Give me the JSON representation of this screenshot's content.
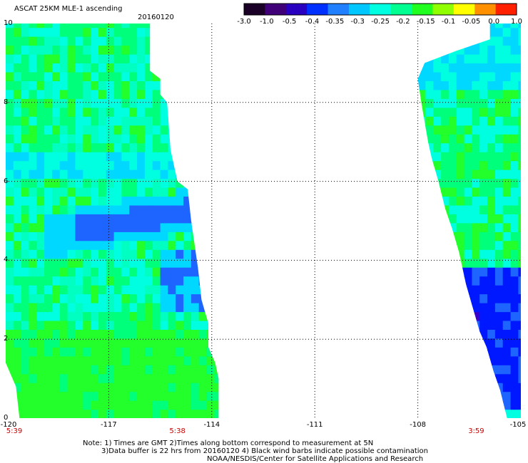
{
  "header": {
    "title": "ASCAT 25KM MLE-1 ascending",
    "date": "20160120"
  },
  "colorbar": {
    "tick_labels": [
      "-3.0",
      "-1.0",
      "-0.5",
      "-0.4",
      "-0.35",
      "-0.3",
      "-0.25",
      "-0.2",
      "-0.15",
      "-0.1",
      "-0.05",
      "0.0",
      "1.0"
    ],
    "colors": [
      "#1a0026",
      "#400078",
      "#2a00c0",
      "#0030ff",
      "#2080ff",
      "#00c8ff",
      "#00ffe0",
      "#00ff90",
      "#20ff20",
      "#90ff00",
      "#ffff00",
      "#ff9000",
      "#ff2000"
    ]
  },
  "map": {
    "lon_range": [
      -120,
      -105
    ],
    "lat_range": [
      0,
      10
    ],
    "lon_labels": [
      "-120",
      "-117",
      "-114",
      "-111",
      "-108",
      "-105"
    ],
    "lat_labels": [
      "0",
      "2",
      "4",
      "6",
      "8",
      "10"
    ],
    "time_labels": [
      {
        "text": "5:39",
        "lon": -120
      },
      {
        "text": "5:38",
        "lon": -115
      },
      {
        "text": "3:59",
        "lon": -106.3
      }
    ],
    "grid": "dotted",
    "swaths": [
      {
        "name": "west",
        "edge": [
          [
            -120,
            10
          ],
          [
            -115.8,
            10
          ],
          [
            -115.8,
            8.8
          ],
          [
            -115.5,
            8.6
          ],
          [
            -115.5,
            8.2
          ],
          [
            -115.3,
            8
          ],
          [
            -115.2,
            6.8
          ],
          [
            -115,
            6
          ],
          [
            -114.7,
            5.8
          ],
          [
            -114.6,
            5
          ],
          [
            -114.5,
            4.4
          ],
          [
            -114.4,
            3.8
          ],
          [
            -114.3,
            3
          ],
          [
            -114.1,
            2.4
          ],
          [
            -114.1,
            1.8
          ],
          [
            -113.9,
            1.4
          ],
          [
            -113.8,
            1
          ],
          [
            -113.8,
            0.5
          ],
          [
            -113.8,
            0
          ],
          [
            -119.6,
            0
          ],
          [
            -119.7,
            0.8
          ],
          [
            -120,
            1.4
          ]
        ]
      },
      {
        "name": "east",
        "edge": [
          [
            -105.9,
            10
          ],
          [
            -105,
            10
          ],
          [
            -105,
            0
          ],
          [
            -105.4,
            0
          ],
          [
            -105.6,
            0.7
          ],
          [
            -105.8,
            1.2
          ],
          [
            -106,
            1.8
          ],
          [
            -106.2,
            2.2
          ],
          [
            -106.4,
            2.8
          ],
          [
            -106.6,
            3.4
          ],
          [
            -106.8,
            4.2
          ],
          [
            -107,
            4.8
          ],
          [
            -107.2,
            5.3
          ],
          [
            -107.4,
            6
          ],
          [
            -107.6,
            6.6
          ],
          [
            -107.7,
            7
          ],
          [
            -107.9,
            8
          ],
          [
            -108,
            8.6
          ],
          [
            -107.8,
            9
          ],
          [
            -106.9,
            9.3
          ],
          [
            -105.9,
            9.6
          ]
        ]
      }
    ]
  },
  "notes": [
    "Note: 1) Times are GMT 2)Times along bottom correspond to measurement at 5N",
    "3)Data buffer is 22 hrs from 20160120 4) Black wind barbs indicate possible contamination",
    "NOAA/NESDIS/Center for Satellite Applications and Research"
  ]
}
